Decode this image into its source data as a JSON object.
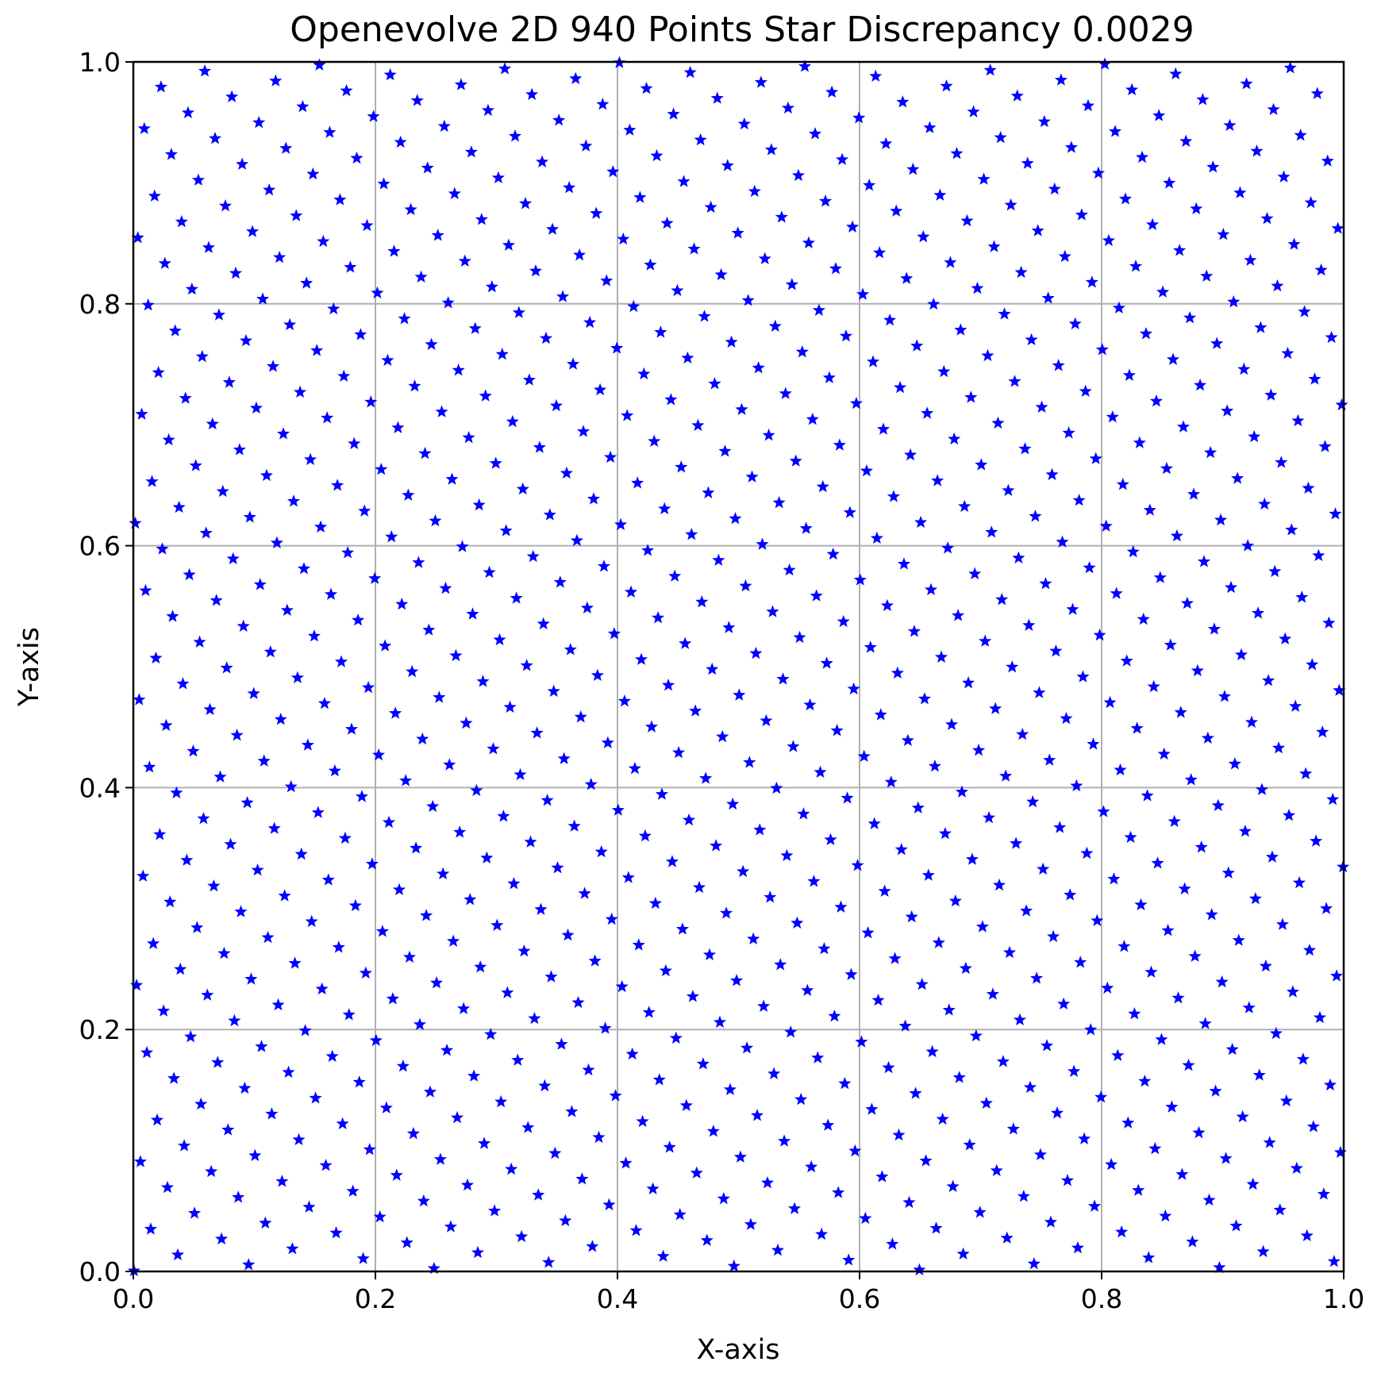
{
  "chart_data": {
    "type": "scatter",
    "title": "Openevolve 2D 940 Points Star Discrepancy 0.0029",
    "xlabel": "X-axis",
    "ylabel": "Y-axis",
    "xlim": [
      0.0,
      1.0
    ],
    "ylim": [
      0.0,
      1.0
    ],
    "xticks": [
      "0.0",
      "0.2",
      "0.4",
      "0.6",
      "0.8",
      "1.0"
    ],
    "yticks": [
      "0.0",
      "0.2",
      "0.4",
      "0.6",
      "0.8",
      "1.0"
    ],
    "grid": true,
    "marker": "star",
    "color": "#0000ff",
    "n_points": 940,
    "points_description": "rank-1 lattice-like set of 940 points, x_i = (i + 0.5)/940, y_i = frac(i * 0.61803399 + 0.0005)"
  }
}
